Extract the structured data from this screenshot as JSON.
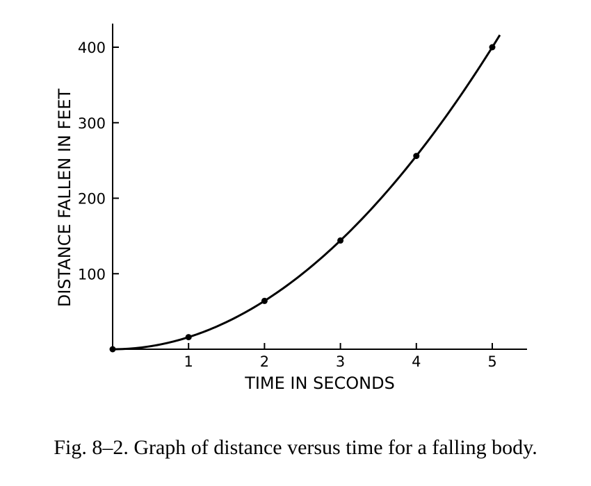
{
  "caption": "Fig. 8–2.   Graph of distance versus time for a falling body.",
  "chart_data": {
    "type": "line",
    "xlabel": "TIME IN SECONDS",
    "ylabel": "DISTANCE FALLEN IN FEET",
    "xlim": [
      0,
      5.5
    ],
    "ylim": [
      0,
      400
    ],
    "x_ticks": [
      1,
      2,
      3,
      4,
      5
    ],
    "y_ticks": [
      100,
      200,
      300,
      400
    ],
    "grid": false,
    "legend": "none",
    "series": [
      {
        "points": {
          "x": [
            0,
            1,
            2,
            3,
            4,
            5
          ],
          "y": [
            0,
            16,
            64,
            144,
            256,
            400
          ]
        },
        "curve": "y = 16x^2",
        "curve_x_range": [
          0,
          5.1
        ]
      }
    ]
  }
}
